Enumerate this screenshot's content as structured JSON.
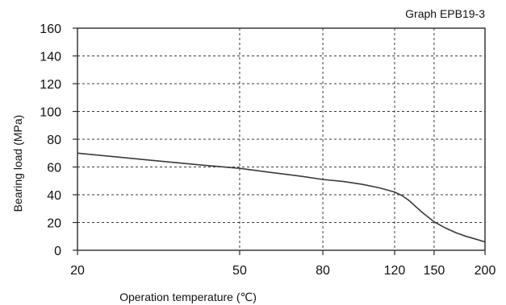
{
  "chart_data": {
    "type": "line",
    "title": "Graph EPB19-3",
    "xlabel": "Operation temperature (℃)",
    "ylabel": "Bearing load (MPa)",
    "xlim": [
      20,
      200
    ],
    "ylim": [
      0,
      160
    ],
    "xticks": [
      20,
      50,
      80,
      120,
      150,
      200
    ],
    "yticks": [
      0,
      20,
      40,
      60,
      80,
      100,
      120,
      140,
      160
    ],
    "grid": true,
    "x_scale": "log",
    "series": [
      {
        "color": "#3a3a3a",
        "x": [
          20,
          30,
          40,
          50,
          60,
          70,
          80,
          90,
          100,
          110,
          120,
          125,
          130,
          140,
          150,
          160,
          170,
          180,
          190,
          200
        ],
        "y": [
          70,
          65,
          61.5,
          59,
          56,
          53.5,
          51,
          49.5,
          47.5,
          45,
          42,
          39.5,
          36,
          27.5,
          20.5,
          16,
          12.5,
          10,
          8,
          6
        ]
      }
    ]
  }
}
